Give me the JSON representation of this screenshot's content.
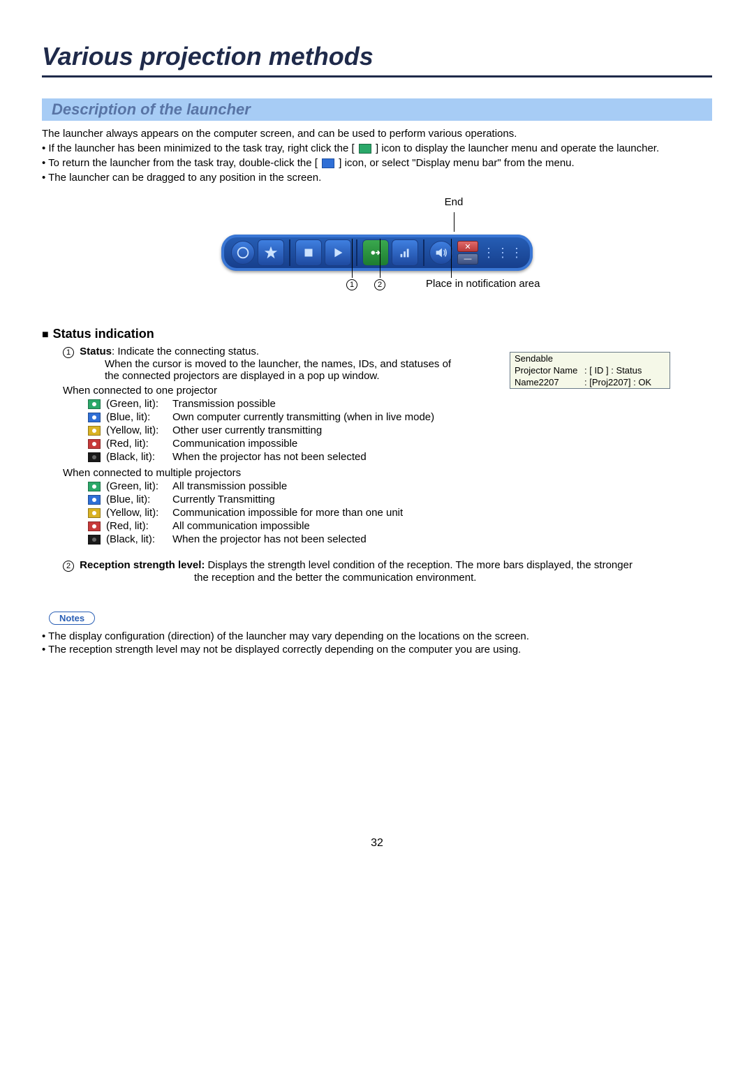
{
  "page": {
    "title": "Various projection methods",
    "section_title": "Description of the launcher",
    "page_number": "32"
  },
  "intro": {
    "line1": "The launcher always appears on the computer screen, and can be used to perform various operations.",
    "b1a": "• If the launcher has been minimized to the task tray, right click the [",
    "b1b": "] icon to display the launcher menu and operate the launcher.",
    "b2a": "• To return the launcher from the task tray, double-click the [",
    "b2b": "] icon, or select \"Display menu bar\" from the menu.",
    "b3": "• The launcher can be dragged to any position in the screen."
  },
  "launcher_labels": {
    "end": "End",
    "one": "1",
    "two": "2",
    "place": "Place in notification area"
  },
  "status": {
    "heading": "Status indication",
    "num1": "1",
    "status_label": "Status",
    "status_desc": ": Indicate the connecting status.",
    "sub1": "When the cursor is moved to the launcher, the names, IDs, and statuses of the connected projectors are displayed in a pop up window.",
    "one_proj": "When connected to one projector",
    "multi_proj": "When connected to multiple projectors",
    "rows_single": [
      {
        "color": "green",
        "label": "(Green, lit):",
        "desc": "Transmission possible"
      },
      {
        "color": "blue",
        "label": "(Blue, lit):",
        "desc": "Own computer currently transmitting (when in live mode)"
      },
      {
        "color": "yellow",
        "label": "(Yellow, lit):",
        "desc": "Other user currently transmitting"
      },
      {
        "color": "red",
        "label": "(Red, lit):",
        "desc": "Communication impossible"
      },
      {
        "color": "black",
        "label": "(Black, lit):",
        "desc": "When the projector has not been selected"
      }
    ],
    "rows_multi": [
      {
        "color": "green",
        "label": "(Green, lit):",
        "desc": "All transmission possible"
      },
      {
        "color": "blue",
        "label": "(Blue, lit):",
        "desc": "Currently Transmitting"
      },
      {
        "color": "yellow",
        "label": "(Yellow, lit):",
        "desc": "Communication impossible for more than one unit"
      },
      {
        "color": "red",
        "label": "(Red, lit):",
        "desc": "All communication impossible"
      },
      {
        "color": "black",
        "label": "(Black, lit):",
        "desc": "When the projector has not been selected"
      }
    ],
    "num2": "2",
    "recep_label": "Reception strength level:",
    "recep_desc": " Displays the strength level condition of the reception. The more bars displayed, the stronger",
    "recep_cont": "the reception and the better the communication environment."
  },
  "popup": {
    "r1": "Sendable",
    "r2a": "Projector Name",
    "r2b": ": [    ID    ] : Status",
    "r3a": "Name2207",
    "r3b": ": [Proj2207] :  OK"
  },
  "notes": {
    "label": "Notes",
    "n1": "• The display configuration (direction) of the launcher may vary depending on the locations on the screen.",
    "n2": "• The reception strength level may not be displayed correctly depending on the computer you are using."
  }
}
